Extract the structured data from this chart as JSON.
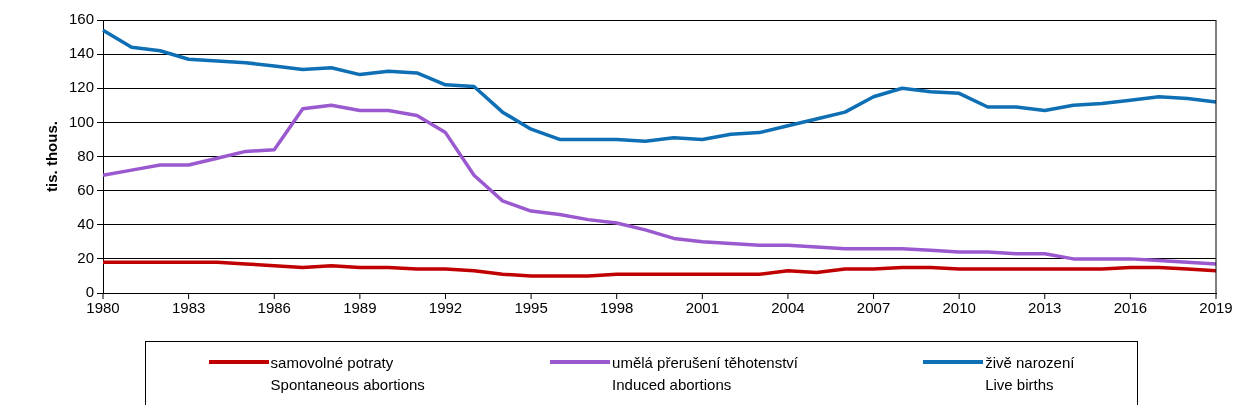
{
  "chart_data": {
    "type": "line",
    "ylabel": "tis. thous.",
    "x": [
      1980,
      1981,
      1982,
      1983,
      1984,
      1985,
      1986,
      1987,
      1988,
      1989,
      1990,
      1991,
      1992,
      1993,
      1994,
      1995,
      1996,
      1997,
      1998,
      1999,
      2000,
      2001,
      2002,
      2003,
      2004,
      2005,
      2006,
      2007,
      2008,
      2009,
      2010,
      2011,
      2012,
      2013,
      2014,
      2015,
      2016,
      2017,
      2018,
      2019
    ],
    "series": [
      {
        "name": "samovolné potraty\nSpontaneous abortions",
        "color": "#c00000",
        "values": [
          18,
          18,
          18,
          18,
          18,
          17,
          16,
          15,
          16,
          15,
          15,
          14,
          14,
          13,
          11,
          10,
          10,
          10,
          11,
          11,
          11,
          11,
          11,
          11,
          13,
          12,
          14,
          14,
          15,
          15,
          14,
          14,
          14,
          14,
          14,
          14,
          15,
          15,
          14,
          13
        ]
      },
      {
        "name": "umělá přerušení těhotenství\nInduced abortions",
        "color": "#9b59d0",
        "values": [
          69,
          72,
          75,
          75,
          79,
          83,
          84,
          108,
          110,
          107,
          107,
          104,
          94,
          69,
          54,
          48,
          46,
          43,
          41,
          37,
          32,
          30,
          29,
          28,
          28,
          27,
          26,
          26,
          26,
          25,
          24,
          24,
          23,
          23,
          20,
          20,
          20,
          19,
          18,
          17
        ]
      },
      {
        "name": "živě narození\nLive births",
        "color": "#0f6fb4",
        "values": [
          154,
          144,
          142,
          137,
          136,
          135,
          133,
          131,
          132,
          128,
          130,
          129,
          122,
          121,
          106,
          96,
          90,
          90,
          90,
          89,
          91,
          90,
          93,
          94,
          98,
          102,
          106,
          115,
          120,
          118,
          117,
          109,
          109,
          107,
          110,
          111,
          113,
          115,
          114,
          112
        ]
      }
    ],
    "xlim": [
      1980,
      2019
    ],
    "xticks": [
      1980,
      1983,
      1986,
      1989,
      1992,
      1995,
      1998,
      2001,
      2004,
      2007,
      2010,
      2013,
      2016,
      2019
    ],
    "ylim": [
      0,
      160
    ],
    "yticks": [
      0,
      20,
      40,
      60,
      80,
      100,
      120,
      140,
      160
    ],
    "grid": "y",
    "legend": "bottom",
    "marker": "none",
    "line_style": "solid"
  }
}
